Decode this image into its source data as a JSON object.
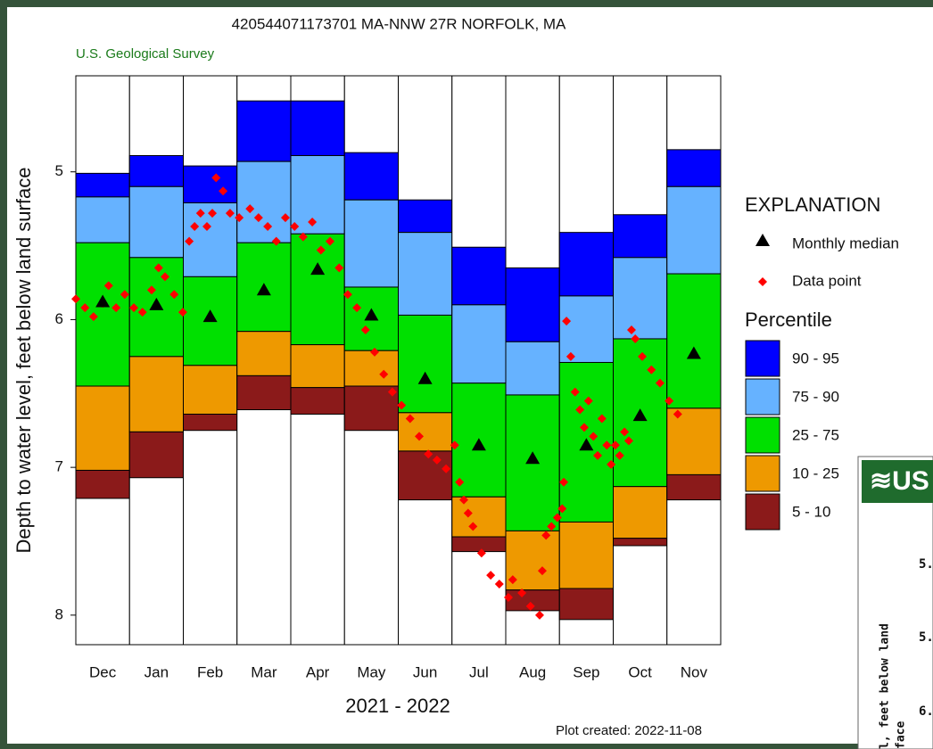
{
  "chart_data": {
    "type": "percentile",
    "title": "420544071173701 MA-NNW   27R NORFOLK, MA",
    "subtitle": "U.S. Geological Survey",
    "ylabel": "Depth to water level, feet below land surface",
    "xlabel": "2021 - 2022",
    "note": "Plot created: 2022-11-08",
    "categories": [
      "Dec",
      "Jan",
      "Feb",
      "Mar",
      "Apr",
      "May",
      "Jun",
      "Jul",
      "Aug",
      "Sep",
      "Oct",
      "Nov"
    ],
    "ylim": [
      4.35,
      8.2
    ],
    "inverted": true,
    "yticks": [
      5,
      6,
      7,
      8
    ],
    "xlim": [
      0,
      12
    ],
    "legend_title": "EXPLANATION",
    "percentile_title": "Percentile",
    "bands": [
      {
        "name": "90 - 95",
        "color": "#0000ff"
      },
      {
        "name": "75 - 90",
        "color": "#66b2ff"
      },
      {
        "name": "25 - 75",
        "color": "#00e000"
      },
      {
        "name": "10 - 25",
        "color": "#ee9900"
      },
      {
        "name": "5 - 10",
        "color": "#8b1a1a"
      }
    ],
    "levels": [
      [
        5.01,
        4.89,
        4.96,
        4.52,
        4.52,
        4.87,
        5.19,
        5.51,
        5.65,
        5.41,
        5.29,
        4.85
      ],
      [
        5.17,
        5.1,
        5.21,
        4.93,
        4.89,
        5.19,
        5.41,
        5.9,
        6.15,
        5.84,
        5.58,
        5.1
      ],
      [
        5.48,
        5.58,
        5.71,
        5.48,
        5.42,
        5.78,
        5.97,
        6.43,
        6.51,
        6.29,
        6.13,
        5.69
      ],
      [
        6.45,
        6.25,
        6.31,
        6.08,
        6.17,
        6.21,
        6.63,
        7.2,
        7.43,
        7.37,
        7.13,
        6.6
      ],
      [
        7.02,
        6.76,
        6.64,
        6.38,
        6.46,
        6.45,
        6.89,
        7.47,
        7.83,
        7.82,
        7.48,
        7.05
      ],
      [
        7.21,
        7.07,
        6.75,
        6.61,
        6.64,
        6.75,
        7.22,
        7.57,
        7.97,
        8.03,
        7.53,
        7.22
      ]
    ],
    "median": {
      "name": "Monthly median",
      "color": "#000000",
      "values": [
        5.88,
        5.9,
        5.98,
        5.8,
        5.66,
        5.97,
        6.4,
        6.85,
        6.94,
        6.85,
        6.65,
        6.23
      ]
    },
    "points": {
      "name": "Data point",
      "color": "#ff0000",
      "x": [
        0.0,
        0.17,
        0.33,
        0.5,
        0.61,
        0.75,
        0.91,
        1.08,
        1.24,
        1.41,
        1.54,
        1.66,
        1.83,
        1.99,
        2.11,
        2.21,
        2.32,
        2.44,
        2.54,
        2.61,
        2.74,
        2.87,
        3.04,
        3.24,
        3.4,
        3.57,
        3.73,
        3.9,
        4.07,
        4.23,
        4.4,
        4.56,
        4.73,
        4.9,
        5.06,
        5.23,
        5.39,
        5.56,
        5.73,
        5.89,
        6.06,
        6.22,
        6.39,
        6.56,
        6.72,
        6.89,
        7.05,
        7.14,
        7.22,
        7.3,
        7.39,
        7.55,
        7.72,
        7.88,
        8.05,
        8.13,
        8.3,
        8.46,
        8.63,
        8.68,
        8.75,
        8.85,
        8.96,
        9.05,
        9.08,
        9.13,
        9.21,
        9.29,
        9.38,
        9.46,
        9.54,
        9.63,
        9.71,
        9.79,
        9.88,
        9.96,
        10.04,
        10.12,
        10.21,
        10.29,
        10.34,
        10.41,
        10.54,
        10.71,
        10.87,
        11.04,
        11.2
      ],
      "values": [
        5.86,
        5.92,
        5.98,
        5.89,
        5.77,
        5.92,
        5.83,
        5.92,
        5.95,
        5.8,
        5.65,
        5.71,
        5.83,
        5.95,
        5.47,
        5.37,
        5.28,
        5.37,
        5.28,
        5.04,
        5.13,
        5.28,
        5.31,
        5.25,
        5.31,
        5.37,
        5.47,
        5.31,
        5.37,
        5.44,
        5.34,
        5.53,
        5.47,
        5.65,
        5.83,
        5.92,
        6.07,
        6.22,
        6.37,
        6.49,
        6.58,
        6.67,
        6.79,
        6.91,
        6.95,
        7.01,
        6.85,
        7.1,
        7.22,
        7.31,
        7.4,
        7.58,
        7.73,
        7.79,
        7.88,
        7.76,
        7.85,
        7.94,
        8.0,
        7.7,
        7.46,
        7.4,
        7.34,
        7.28,
        7.1,
        6.01,
        6.25,
        6.49,
        6.61,
        6.73,
        6.55,
        6.79,
        6.92,
        6.67,
        6.85,
        6.98,
        6.85,
        6.92,
        6.76,
        6.82,
        6.07,
        6.13,
        6.25,
        6.34,
        6.43,
        6.55,
        6.64
      ]
    }
  },
  "overlay": {
    "logo": "≋US",
    "ticks": [
      "5.",
      "5.",
      "6."
    ],
    "ylabel": [
      "l, feet below land",
      "face"
    ]
  }
}
